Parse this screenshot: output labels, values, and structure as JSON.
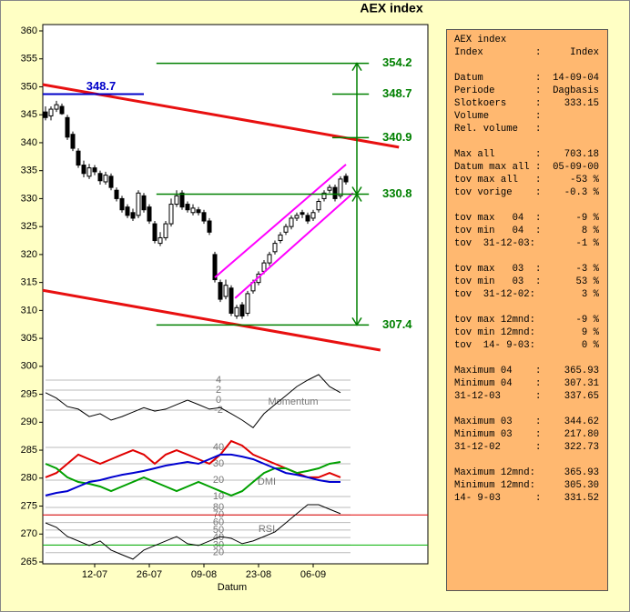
{
  "chart_data": {
    "type": "candlestick",
    "title": "AEX index",
    "xlabel": "Datum",
    "xlim": [
      -0.5,
      70
    ],
    "ylim": [
      265,
      360
    ],
    "yticks": [
      265,
      270,
      275,
      280,
      285,
      290,
      295,
      300,
      305,
      310,
      315,
      320,
      325,
      330,
      335,
      340,
      345,
      350,
      355,
      360
    ],
    "xticks": [
      {
        "value": 9,
        "label": "12-07"
      },
      {
        "value": 19,
        "label": "26-07"
      },
      {
        "value": 29,
        "label": "09-08"
      },
      {
        "value": 39,
        "label": "23-08"
      },
      {
        "value": 49,
        "label": "06-09"
      }
    ],
    "open": [
      345.5,
      344.8,
      346.0,
      346.5,
      344.5,
      341.5,
      338.5,
      336.0,
      334.0,
      335.5,
      334.5,
      333.0,
      334.0,
      331.5,
      330.0,
      328.5,
      327.5,
      327.0,
      330.5,
      328.5,
      325.5,
      322.0,
      323.0,
      325.5,
      329.0,
      331.0,
      329.0,
      327.5,
      328.0,
      327.5,
      326.0,
      320.0,
      315.0,
      312.5,
      314.0,
      309.0,
      311.0,
      309.5,
      313.5,
      315.0,
      317.0,
      318.5,
      320.5,
      322.5,
      324.0,
      325.0,
      326.5,
      327.5,
      327.0,
      326.5,
      328.0,
      330.0,
      331.5,
      332.0,
      330.5,
      334.0
    ],
    "high": [
      346.5,
      346.5,
      347.5,
      347.0,
      345.0,
      342.0,
      339.0,
      336.8,
      336.2,
      336.0,
      335.0,
      334.8,
      334.5,
      332.0,
      330.5,
      329.0,
      328.2,
      331.5,
      331.0,
      329.0,
      326.0,
      324.0,
      326.0,
      330.0,
      331.5,
      331.5,
      329.5,
      329.0,
      328.5,
      328.0,
      326.5,
      320.5,
      315.5,
      315.5,
      314.5,
      311.0,
      311.5,
      313.5,
      315.5,
      317.0,
      319.0,
      320.5,
      322.5,
      324.0,
      325.5,
      327.0,
      327.5,
      328.0,
      327.5,
      328.0,
      330.0,
      331.5,
      332.5,
      332.5,
      334.0,
      334.5
    ],
    "low": [
      344.0,
      344.0,
      345.5,
      345.0,
      340.5,
      338.5,
      335.5,
      333.8,
      333.5,
      334.2,
      332.5,
      332.5,
      331.5,
      329.5,
      327.5,
      326.5,
      326.0,
      326.5,
      327.5,
      325.5,
      322.0,
      321.5,
      322.5,
      325.0,
      328.5,
      328.0,
      327.5,
      327.0,
      327.0,
      325.5,
      323.5,
      315.0,
      311.5,
      312.0,
      309.0,
      308.5,
      308.5,
      309.0,
      313.0,
      314.5,
      316.5,
      318.0,
      320.0,
      322.0,
      323.5,
      324.5,
      326.0,
      326.5,
      325.5,
      326.0,
      327.5,
      329.5,
      331.0,
      329.5,
      330.0,
      332.5
    ],
    "close": [
      344.5,
      346.0,
      346.8,
      345.2,
      341.0,
      339.0,
      336.0,
      334.5,
      335.5,
      334.8,
      333.2,
      334.2,
      332.0,
      330.0,
      328.0,
      327.0,
      326.5,
      331.0,
      328.0,
      326.0,
      322.5,
      323.0,
      325.5,
      329.0,
      330.5,
      328.5,
      328.0,
      328.3,
      327.5,
      326.0,
      324.0,
      315.5,
      312.0,
      314.5,
      309.5,
      310.5,
      309.0,
      313.0,
      315.0,
      316.5,
      318.5,
      320.0,
      322.0,
      323.5,
      325.0,
      326.5,
      327.0,
      327.2,
      326.0,
      327.5,
      329.5,
      331.0,
      332.0,
      330.0,
      333.5,
      333.0
    ],
    "trendlines": [
      {
        "color": "#e81010",
        "points": [
          [
            -0.5,
            350.4
          ],
          [
            64.7,
            339.2
          ]
        ]
      },
      {
        "color": "#e81010",
        "points": [
          [
            -0.5,
            313.6
          ],
          [
            61.3,
            302.9
          ]
        ]
      },
      {
        "color": "#ff00ff",
        "points": [
          [
            31,
            315.9
          ],
          [
            55,
            336.1
          ]
        ]
      },
      {
        "color": "#ff00ff",
        "points": [
          [
            34.7,
            312.2
          ],
          [
            56.3,
            331.0
          ]
        ]
      }
    ],
    "levels": [
      {
        "value": 354.2,
        "from": 20.3,
        "to": 59.2,
        "color": "#008000"
      },
      {
        "value": 348.7,
        "from": 52.5,
        "to": 59.2,
        "color": "#008000"
      },
      {
        "value": 340.9,
        "from": 52.5,
        "to": 59.2,
        "color": "#008000"
      },
      {
        "value": 330.8,
        "from": 20.3,
        "to": 59.2,
        "color": "#008000"
      },
      {
        "value": 307.4,
        "from": 20.3,
        "to": 59.2,
        "color": "#008000"
      }
    ],
    "resistance": {
      "value": 348.7,
      "from": -0.5,
      "to": 18,
      "color": "#0000c8"
    },
    "arrows": [
      {
        "x": 57,
        "from": 330.8,
        "to": 354.2
      },
      {
        "x": 57,
        "from": 330.8,
        "to": 307.4
      }
    ],
    "indicators": {
      "x": [
        0,
        2,
        4,
        6,
        8,
        10,
        12,
        14,
        16,
        18,
        20,
        22,
        24,
        26,
        28,
        30,
        32,
        34,
        36,
        38,
        40,
        42,
        44,
        46,
        48,
        50,
        52,
        54
      ],
      "momentum": {
        "name": "Momentum",
        "ylim": [
          -6,
          5
        ],
        "yticks": [
          4,
          2,
          0,
          -2
        ],
        "color": "#000000",
        "values": [
          1.5,
          0.4,
          -1.3,
          -1.8,
          -3.3,
          -2.7,
          -4.0,
          -3.3,
          -2.4,
          -1.5,
          -2.2,
          -1.8,
          -0.9,
          0.0,
          -0.9,
          -1.8,
          -1.5,
          -2.7,
          -4.0,
          -5.5,
          -2.7,
          -0.9,
          0.9,
          2.7,
          4.0,
          5.1,
          2.7,
          1.5
        ]
      },
      "dmi": {
        "name": "DMI",
        "ylim": [
          5,
          45
        ],
        "yticks": [
          40,
          30,
          20,
          10
        ],
        "series": [
          {
            "color": "#e00000",
            "values": [
              21.7,
              24.4,
              30,
              35.6,
              32.8,
              30,
              32.8,
              35.6,
              38.3,
              35.6,
              30,
              35.6,
              38.3,
              35.6,
              32.8,
              30,
              35.6,
              43.9,
              41.1,
              35.6,
              32.8,
              30,
              27.2,
              24.4,
              21.7,
              21.7,
              24.4,
              21.7
            ]
          },
          {
            "color": "#00a000",
            "values": [
              30,
              27.2,
              21.7,
              18.9,
              17.8,
              16.1,
              13.3,
              16.1,
              18.9,
              21.7,
              18.9,
              16.1,
              13.3,
              16.1,
              18.9,
              16.1,
              13.3,
              10.6,
              13.3,
              18.9,
              24.4,
              27.2,
              27.2,
              24.4,
              25.6,
              27.2,
              30,
              31.1
            ]
          },
          {
            "color": "#0000d0",
            "values": [
              10.6,
              12.2,
              13.3,
              16.1,
              18.9,
              20,
              21.7,
              23.3,
              24.4,
              25.6,
              27.2,
              28.9,
              30,
              31.1,
              30,
              32.8,
              35.6,
              35.6,
              34.4,
              32.8,
              30,
              27.2,
              24.4,
              23.3,
              21.7,
              20,
              18.9,
              18.9
            ]
          }
        ]
      },
      "rsi": {
        "name": "RSI",
        "ylim": [
          10,
          90
        ],
        "yticks": [
          80,
          70,
          60,
          50,
          40,
          30,
          20
        ],
        "color": "#000000",
        "levels": [
          {
            "value": 70,
            "color": "#e00000"
          },
          {
            "value": 30,
            "color": "#00b000"
          }
        ],
        "values": [
          59.5,
          53.5,
          41.4,
          35.4,
          29.4,
          35.4,
          23.4,
          17.3,
          11.3,
          23.4,
          29.4,
          35.4,
          41.4,
          31.8,
          29.4,
          35.4,
          41.4,
          39,
          31.8,
          35.4,
          41.4,
          47.5,
          59.5,
          71.6,
          83.6,
          83.6,
          77.6,
          71.6
        ]
      }
    }
  },
  "info_panel": {
    "groups": [
      [
        "AEX index",
        "Index         :     Index"
      ],
      [
        "Datum         :  14-09-04",
        "Periode       :  Dagbasis",
        "Slotkoers     :    333.15",
        "Volume        :",
        "Rel. volume   :"
      ],
      [
        "Max all       :    703.18",
        "Datum max all :  05-09-00",
        "tov max all   :     -53 %",
        "tov vorige    :    -0.3 %"
      ],
      [
        "tov max   04  :      -9 %",
        "tov min   04  :       8 %",
        "tov  31-12-03:       -1 %"
      ],
      [
        "tov max   03  :      -3 %",
        "tov min   03  :      53 %",
        "tov  31-12-02:        3 %"
      ],
      [
        "tov max 12mnd:       -9 %",
        "tov min 12mnd:        9 %",
        "tov  14- 9-03:        0 %"
      ],
      [
        "Maximum 04    :    365.93",
        "Minimum 04    :    307.31",
        "31-12-03      :    337.65"
      ],
      [
        "Maximum 03    :    344.62",
        "Minimum 03    :    217.80",
        "31-12-02      :    322.73"
      ],
      [
        "Maximum 12mnd:     365.93",
        "Minimum 12mnd:     305.30",
        "14- 9-03      :    331.52"
      ]
    ]
  }
}
